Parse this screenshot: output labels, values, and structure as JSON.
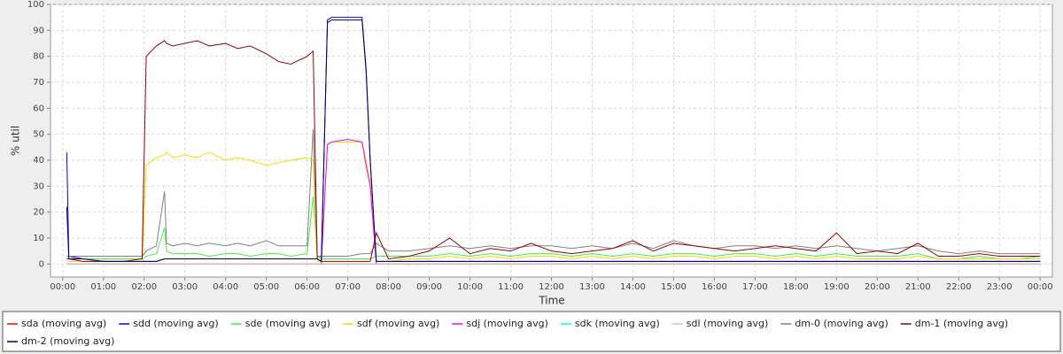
{
  "chart_data": {
    "type": "line",
    "ylabel": "% util",
    "xlabel": "Time",
    "xlim": [
      -0.3,
      24.3
    ],
    "ylim": [
      -5,
      100
    ],
    "yticks": [
      0,
      10,
      20,
      30,
      40,
      50,
      60,
      70,
      80,
      90,
      100
    ],
    "xticks": [
      {
        "value": 0,
        "label": "00:00"
      },
      {
        "value": 1,
        "label": "01:00"
      },
      {
        "value": 2,
        "label": "02:00"
      },
      {
        "value": 3,
        "label": "03:00"
      },
      {
        "value": 4,
        "label": "04:00"
      },
      {
        "value": 5,
        "label": "05:00"
      },
      {
        "value": 6,
        "label": "06:00"
      },
      {
        "value": 7,
        "label": "07:00"
      },
      {
        "value": 8,
        "label": "08:00"
      },
      {
        "value": 9,
        "label": "09:00"
      },
      {
        "value": 10,
        "label": "10:00"
      },
      {
        "value": 11,
        "label": "11:00"
      },
      {
        "value": 12,
        "label": "12:00"
      },
      {
        "value": 13,
        "label": "13:00"
      },
      {
        "value": 14,
        "label": "14:00"
      },
      {
        "value": 15,
        "label": "15:00"
      },
      {
        "value": 16,
        "label": "16:00"
      },
      {
        "value": 17,
        "label": "17:00"
      },
      {
        "value": 18,
        "label": "18:00"
      },
      {
        "value": 19,
        "label": "19:00"
      },
      {
        "value": 20,
        "label": "20:00"
      },
      {
        "value": 21,
        "label": "21:00"
      },
      {
        "value": 22,
        "label": "22:00"
      },
      {
        "value": 23,
        "label": "23:00"
      },
      {
        "value": 24,
        "label": "00:00"
      }
    ],
    "grid": true,
    "x": [
      0.1,
      0.15,
      0.5,
      1,
      1.5,
      1.95,
      2.05,
      2.3,
      2.5,
      2.55,
      2.7,
      3,
      3.3,
      3.6,
      4,
      4.3,
      4.6,
      5,
      5.3,
      5.6,
      6,
      6.15,
      6.25,
      6.35,
      6.5,
      6.6,
      7,
      7.35,
      7.45,
      7.55,
      7.7,
      8,
      8.5,
      9,
      9.5,
      10,
      10.5,
      11,
      11.5,
      12,
      12.5,
      13,
      13.5,
      14,
      14.5,
      15,
      15.5,
      16,
      16.5,
      17,
      17.5,
      18,
      18.5,
      19,
      19.5,
      20,
      20.5,
      21,
      21.5,
      22,
      22.5,
      23,
      23.5,
      24
    ],
    "series": [
      {
        "name": "sda (moving avg)",
        "color": "#ff0000",
        "values": [
          0,
          0,
          0,
          0,
          0,
          0,
          0,
          0,
          0,
          0,
          0,
          0,
          0,
          0,
          0,
          0,
          0,
          0,
          0,
          0,
          0,
          0,
          0,
          0,
          0,
          0,
          0,
          0,
          0,
          0,
          0,
          0,
          0,
          0,
          0,
          0,
          0,
          0,
          0,
          0,
          0,
          0,
          0,
          0,
          0,
          0,
          0,
          0,
          0,
          0,
          0,
          0,
          0,
          0,
          0,
          0,
          0,
          0,
          0,
          0,
          0,
          0,
          0,
          0
        ]
      },
      {
        "name": "sdd (moving avg)",
        "color": "#0000ff",
        "values": [
          43,
          3,
          2,
          1,
          1,
          1,
          1,
          1,
          2,
          2,
          2,
          2,
          2,
          2,
          2,
          2,
          2,
          2,
          2,
          2,
          2,
          2,
          2,
          1,
          94,
          95,
          95,
          95,
          75,
          40,
          1,
          1,
          1,
          1,
          1,
          1,
          1,
          1,
          1,
          1,
          1,
          1,
          1,
          1,
          1,
          1,
          1,
          1,
          1,
          1,
          1,
          1,
          1,
          1,
          1,
          1,
          1,
          1,
          1,
          1,
          1,
          1,
          1,
          1
        ]
      },
      {
        "name": "sde (moving avg)",
        "color": "#44ee44",
        "values": [
          2,
          2,
          2,
          2,
          2,
          2,
          3,
          4,
          14,
          5,
          4,
          4,
          4,
          3,
          4,
          4,
          3,
          4,
          4,
          3,
          4,
          26,
          3,
          2,
          2,
          2,
          2,
          2,
          2,
          2,
          3,
          3,
          3,
          3,
          4,
          3,
          4,
          3,
          4,
          4,
          3,
          4,
          3,
          4,
          3,
          4,
          4,
          3,
          4,
          4,
          3,
          4,
          3,
          4,
          3,
          3,
          3,
          4,
          2,
          2,
          3,
          2,
          2,
          3
        ]
      },
      {
        "name": "sdf (moving avg)",
        "color": "#eedd00",
        "values": [
          1,
          1,
          1,
          1,
          1,
          1,
          38,
          41,
          42,
          43,
          41,
          42,
          41,
          43,
          40,
          41,
          40,
          38,
          39,
          40,
          41,
          40,
          1,
          1,
          46,
          47,
          47,
          47,
          40,
          32,
          1,
          1,
          2,
          2,
          3,
          2,
          3,
          2,
          3,
          3,
          2,
          3,
          2,
          3,
          2,
          3,
          3,
          2,
          3,
          3,
          2,
          3,
          2,
          3,
          2,
          2,
          2,
          3,
          2,
          2,
          2,
          2,
          2,
          2
        ]
      },
      {
        "name": "sdj (moving avg)",
        "color": "#ff00ff",
        "values": [
          0,
          0,
          0,
          0,
          0,
          0,
          0,
          0,
          0,
          0,
          0,
          0,
          0,
          0,
          0,
          0,
          0,
          0,
          0,
          0,
          0,
          0,
          0,
          0,
          46,
          47,
          48,
          47,
          38,
          30,
          0,
          0,
          0,
          0,
          0,
          0,
          0,
          0,
          0,
          0,
          0,
          0,
          0,
          0,
          0,
          0,
          0,
          0,
          0,
          0,
          0,
          0,
          0,
          0,
          0,
          0,
          0,
          0,
          0,
          0,
          0,
          0,
          0,
          0
        ]
      },
      {
        "name": "sdk (moving avg)",
        "color": "#00ffff",
        "values": [
          0,
          0,
          0,
          0,
          0,
          0,
          0,
          0,
          0,
          0,
          0,
          0,
          0,
          0,
          0,
          0,
          0,
          0,
          0,
          0,
          0,
          0,
          0,
          0,
          0,
          0,
          0,
          0,
          0,
          0,
          0,
          0,
          0,
          0,
          0,
          0,
          0,
          0,
          0,
          0,
          0,
          0,
          0,
          0,
          0,
          0,
          0,
          0,
          0,
          0,
          0,
          0,
          0,
          0,
          0,
          0,
          0,
          0,
          0,
          0,
          0,
          0,
          0,
          0
        ]
      },
      {
        "name": "sdl (moving avg)",
        "color": "#ffafaf",
        "values": [
          0,
          0,
          0,
          0,
          0,
          0,
          0,
          0,
          0,
          0,
          0,
          0,
          0,
          0,
          0,
          0,
          0,
          0,
          0,
          0,
          0,
          0,
          0,
          0,
          0,
          0,
          0,
          0,
          0,
          0,
          0,
          0,
          0,
          0,
          0,
          0,
          0,
          0,
          0,
          0,
          0,
          0,
          0,
          0,
          0,
          0,
          0,
          0,
          0,
          0,
          0,
          0,
          0,
          0,
          0,
          0,
          0,
          0,
          0,
          0,
          0,
          0,
          0,
          0
        ]
      },
      {
        "name": "dm-0 (moving avg)",
        "color": "#808080",
        "values": [
          3,
          3,
          3,
          3,
          3,
          3,
          5,
          7,
          28,
          8,
          7,
          8,
          7,
          8,
          7,
          8,
          7,
          9,
          7,
          7,
          7,
          52,
          3,
          3,
          3,
          3,
          3,
          4,
          4,
          4,
          8,
          5,
          5,
          6,
          7,
          6,
          7,
          6,
          7,
          7,
          6,
          7,
          6,
          8,
          6,
          9,
          7,
          6,
          7,
          7,
          6,
          7,
          6,
          7,
          6,
          5,
          6,
          7,
          5,
          4,
          5,
          4,
          4,
          4
        ]
      },
      {
        "name": "dm-1 (moving avg)",
        "color": "#990000",
        "values": [
          2,
          2,
          1,
          1,
          1,
          2,
          80,
          84,
          86,
          85,
          84,
          85,
          86,
          84,
          85,
          83,
          84,
          81,
          78,
          77,
          80,
          82,
          2,
          1,
          1,
          1,
          1,
          1,
          1,
          1,
          12,
          2,
          3,
          5,
          10,
          4,
          6,
          5,
          8,
          5,
          4,
          5,
          6,
          9,
          5,
          8,
          7,
          6,
          5,
          6,
          7,
          6,
          5,
          12,
          4,
          5,
          4,
          8,
          3,
          3,
          4,
          3,
          3,
          3
        ]
      },
      {
        "name": "dm-2 (moving avg)",
        "color": "#000060",
        "values": [
          22,
          2,
          2,
          1,
          1,
          1,
          1,
          1,
          2,
          2,
          2,
          2,
          2,
          2,
          2,
          2,
          2,
          2,
          2,
          2,
          2,
          2,
          2,
          1,
          93,
          94,
          94,
          94,
          74,
          40,
          1,
          1,
          1,
          1,
          1,
          1,
          1,
          1,
          1,
          1,
          1,
          1,
          1,
          1,
          1,
          1,
          1,
          1,
          1,
          1,
          1,
          1,
          1,
          1,
          1,
          1,
          1,
          1,
          1,
          1,
          1,
          1,
          1,
          1
        ]
      }
    ]
  }
}
